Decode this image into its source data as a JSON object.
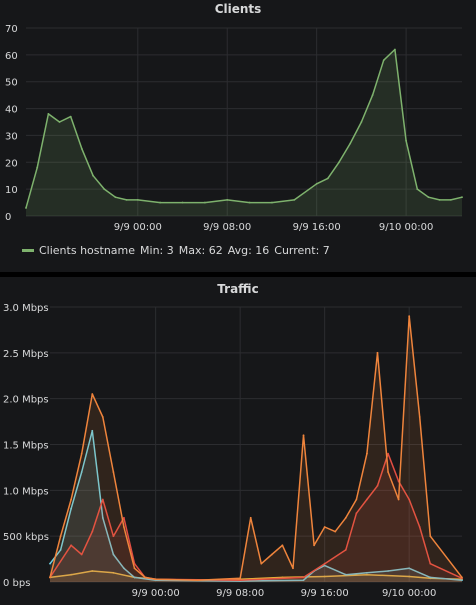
{
  "chart_data": [
    {
      "type": "line",
      "title": "Clients",
      "x_ticks": [
        "9/9 00:00",
        "9/9 08:00",
        "9/9 16:00",
        "9/10 00:00"
      ],
      "y_ticks": [
        "0",
        "10",
        "20",
        "30",
        "40",
        "50",
        "60",
        "70"
      ],
      "ylim": [
        0,
        70
      ],
      "x_range": [
        "9/8 14:00",
        "9/10 05:00"
      ],
      "grid": true,
      "series": [
        {
          "name": "Clients hostname",
          "color": "#7eb26d",
          "fill": true,
          "x": [
            "9/8 14:00",
            "9/8 15:00",
            "9/8 16:00",
            "9/8 17:00",
            "9/8 18:00",
            "9/8 19:00",
            "9/8 20:00",
            "9/8 21:00",
            "9/8 22:00",
            "9/8 23:00",
            "9/9 00:00",
            "9/9 02:00",
            "9/9 04:00",
            "9/9 06:00",
            "9/9 08:00",
            "9/9 10:00",
            "9/9 12:00",
            "9/9 14:00",
            "9/9 16:00",
            "9/9 17:00",
            "9/9 18:00",
            "9/9 19:00",
            "9/9 20:00",
            "9/9 21:00",
            "9/9 22:00",
            "9/9 23:00",
            "9/10 00:00",
            "9/10 01:00",
            "9/10 02:00",
            "9/10 03:00",
            "9/10 04:00",
            "9/10 05:00"
          ],
          "values": [
            3,
            18,
            38,
            35,
            37,
            25,
            15,
            10,
            7,
            6,
            6,
            5,
            5,
            5,
            6,
            5,
            5,
            6,
            12,
            14,
            20,
            27,
            35,
            45,
            58,
            62,
            28,
            10,
            7,
            6,
            6,
            7
          ]
        }
      ],
      "legend": {
        "position": "bottom-left",
        "name": "Clients hostname",
        "min": "Min: 3",
        "max": "Max: 62",
        "avg": "Avg: 16",
        "current": "Current: 7"
      }
    },
    {
      "type": "line",
      "title": "Traffic",
      "x_ticks": [
        "9/9 00:00",
        "9/9 08:00",
        "9/9 16:00",
        "9/10 00:00"
      ],
      "y_ticks": [
        "0 bps",
        "500 kbps",
        "1.0 Mbps",
        "1.5 Mbps",
        "2.0 Mbps",
        "2.5 Mbps",
        "3.0 Mbps"
      ],
      "ylim": [
        0,
        3.0
      ],
      "y_unit": "Mbps",
      "x_range": [
        "9/8 14:00",
        "9/10 05:00"
      ],
      "grid": true,
      "series": [
        {
          "color": "#eab839",
          "x": [
            "9/8 14:00",
            "9/8 16:00",
            "9/8 18:00",
            "9/8 20:00",
            "9/8 22:00",
            "9/9 00:00",
            "9/9 04:00",
            "9/9 08:00",
            "9/9 12:00",
            "9/9 16:00",
            "9/9 20:00",
            "9/10 00:00",
            "9/10 02:00",
            "9/10 05:00"
          ],
          "values": [
            0.05,
            0.08,
            0.12,
            0.1,
            0.05,
            0.03,
            0.02,
            0.03,
            0.05,
            0.06,
            0.08,
            0.06,
            0.04,
            0.03
          ]
        },
        {
          "color": "#6ed0e0",
          "x": [
            "9/8 14:00",
            "9/8 15:00",
            "9/8 16:00",
            "9/8 17:00",
            "9/8 18:00",
            "9/8 19:00",
            "9/8 20:00",
            "9/8 21:00",
            "9/8 22:00",
            "9/9 00:00",
            "9/9 08:00",
            "9/9 14:00",
            "9/9 15:00",
            "9/9 16:00",
            "9/9 18:00",
            "9/9 20:00",
            "9/9 22:00",
            "9/10 00:00",
            "9/10 02:00",
            "9/10 05:00"
          ],
          "values": [
            0.2,
            0.35,
            0.8,
            1.2,
            1.65,
            0.7,
            0.3,
            0.15,
            0.05,
            0.02,
            0.01,
            0.02,
            0.12,
            0.18,
            0.08,
            0.1,
            0.12,
            0.15,
            0.05,
            0.02
          ]
        },
        {
          "color": "#e24d42",
          "x": [
            "9/8 14:00",
            "9/8 16:00",
            "9/8 17:00",
            "9/8 18:00",
            "9/8 19:00",
            "9/8 20:00",
            "9/8 21:00",
            "9/8 22:00",
            "9/8 23:00",
            "9/9 00:00",
            "9/9 08:00",
            "9/9 14:00",
            "9/9 16:00",
            "9/9 18:00",
            "9/9 19:00",
            "9/9 20:00",
            "9/9 21:00",
            "9/9 22:00",
            "9/9 23:00",
            "9/10 00:00",
            "9/10 01:00",
            "9/10 02:00",
            "9/10 05:00"
          ],
          "values": [
            0.05,
            0.4,
            0.3,
            0.55,
            0.9,
            0.5,
            0.7,
            0.2,
            0.05,
            0.03,
            0.02,
            0.05,
            0.2,
            0.35,
            0.75,
            0.9,
            1.05,
            1.4,
            1.1,
            0.9,
            0.6,
            0.2,
            0.04
          ]
        },
        {
          "color": "#ef843c",
          "x": [
            "9/8 14:00",
            "9/8 15:00",
            "9/8 16:00",
            "9/8 17:00",
            "9/8 18:00",
            "9/8 19:00",
            "9/8 20:00",
            "9/8 21:00",
            "9/8 22:00",
            "9/8 23:00",
            "9/9 00:00",
            "9/9 04:00",
            "9/9 08:00",
            "9/9 09:00",
            "9/9 10:00",
            "9/9 11:00",
            "9/9 12:00",
            "9/9 13:00",
            "9/9 14:00",
            "9/9 15:00",
            "9/9 16:00",
            "9/9 17:00",
            "9/9 18:00",
            "9/9 19:00",
            "9/9 20:00",
            "9/9 21:00",
            "9/9 22:00",
            "9/9 23:00",
            "9/10 00:00",
            "9/10 01:00",
            "9/10 02:00",
            "9/10 05:00"
          ],
          "values": [
            0.05,
            0.5,
            0.9,
            1.4,
            2.05,
            1.8,
            1.2,
            0.6,
            0.15,
            0.05,
            0.03,
            0.02,
            0.04,
            0.7,
            0.2,
            0.3,
            0.4,
            0.15,
            1.6,
            0.4,
            0.6,
            0.55,
            0.7,
            0.9,
            1.4,
            2.5,
            1.2,
            0.9,
            2.9,
            1.8,
            0.5,
            0.05
          ]
        }
      ]
    }
  ]
}
